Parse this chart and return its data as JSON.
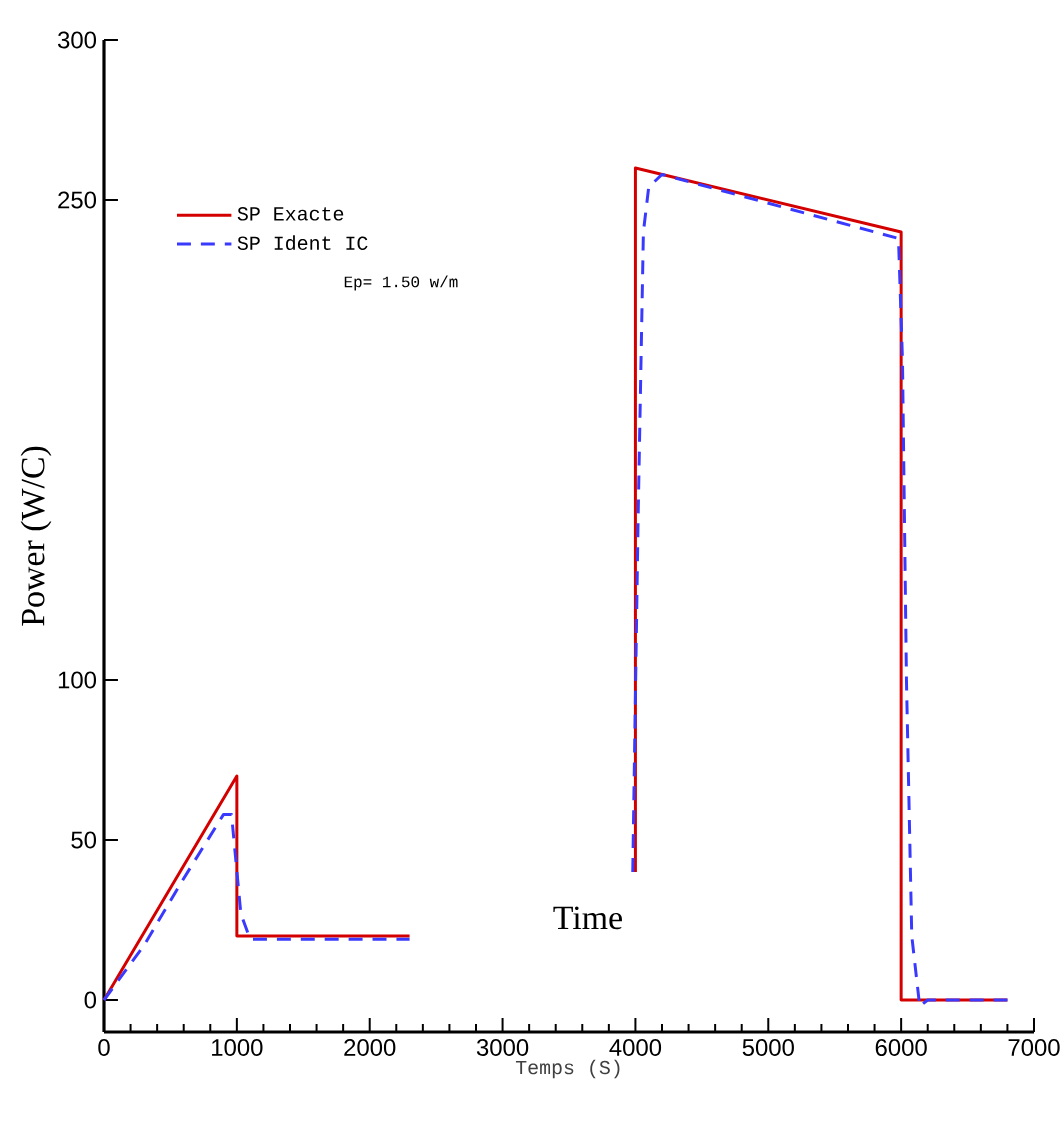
{
  "chart_data": {
    "type": "line",
    "xlabel": "Temps (S)",
    "ylabel": "Power (W/C)",
    "annotations": [
      "Ep= 1.50 w/m",
      "Time"
    ],
    "xlim": [
      0,
      7000
    ],
    "xticks": [
      0,
      1000,
      2000,
      3000,
      4000,
      5000,
      6000,
      7000
    ],
    "ylim": [
      -10,
      300
    ],
    "yticks": [
      0,
      50,
      100,
      250,
      300
    ],
    "legend": "top left",
    "grid": false,
    "series": [
      {
        "name": "SP Exacte",
        "color": "#d40000",
        "line_style": "solid",
        "x": [
          0,
          1000,
          1000,
          2300,
          3000,
          4000,
          4000,
          6000,
          6000,
          6800
        ],
        "values": [
          0,
          70,
          20,
          20,
          null,
          40,
          260,
          240,
          0,
          0
        ]
      },
      {
        "name": "SP Ident IC",
        "color": "#3a3aff",
        "line_style": "dashed",
        "x": [
          0,
          300,
          600,
          900,
          960,
          1030,
          1100,
          2300,
          3000,
          3980,
          4020,
          4060,
          4100,
          4200,
          5980,
          6010,
          6040,
          6080,
          6140,
          6200,
          6800
        ],
        "values": [
          0,
          17,
          38,
          58,
          58,
          27,
          19,
          19,
          null,
          40,
          150,
          240,
          254,
          258,
          238,
          200,
          100,
          20,
          -2,
          0,
          0
        ]
      }
    ]
  }
}
